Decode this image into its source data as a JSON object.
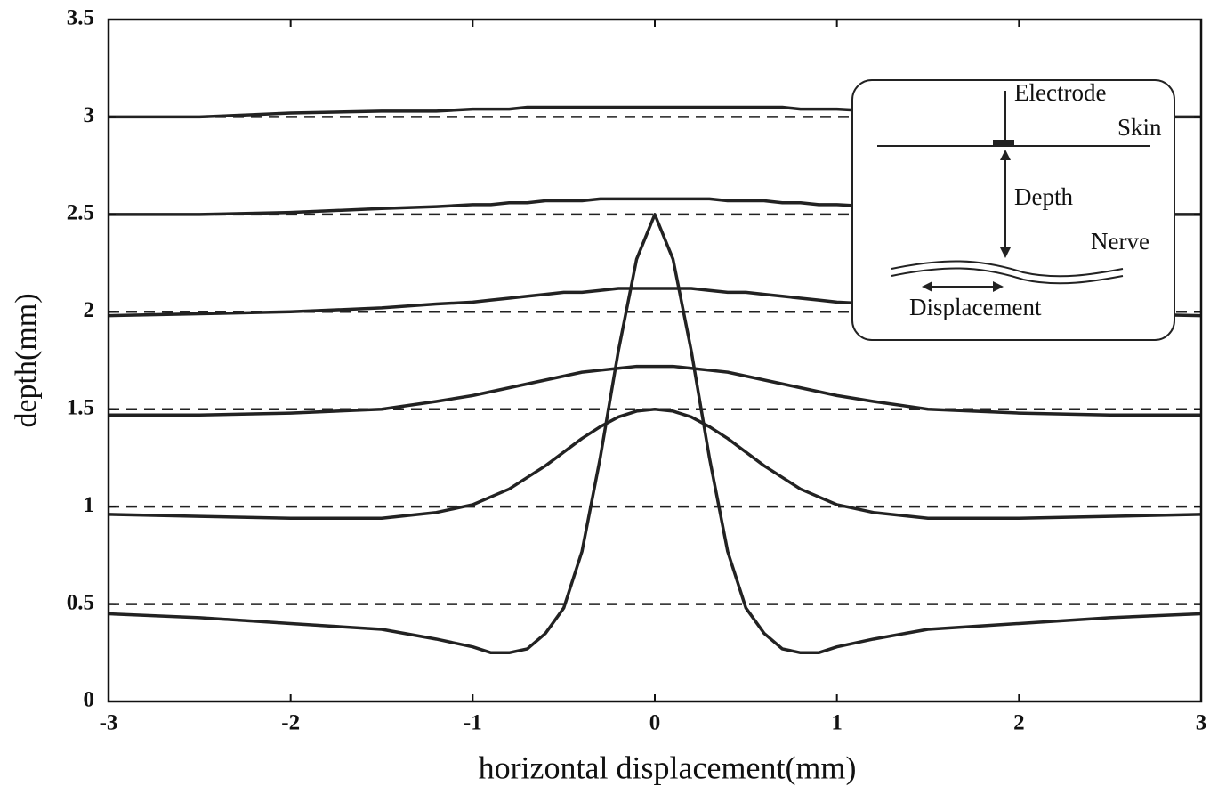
{
  "chart_data": {
    "type": "line",
    "xlabel": "horizontal displacement(mm)",
    "ylabel": "depth(mm)",
    "xlim": [
      -3,
      3
    ],
    "ylim": [
      0,
      3.5
    ],
    "xticks": [
      -3,
      -2,
      -1,
      0,
      1,
      2,
      3
    ],
    "yticks": [
      0,
      0.5,
      1,
      1.5,
      2,
      2.5,
      3,
      3.5
    ],
    "x": [
      -3,
      -2.5,
      -2,
      -1.5,
      -1.2,
      -1,
      -0.9,
      -0.8,
      -0.7,
      -0.6,
      -0.5,
      -0.4,
      -0.3,
      -0.2,
      -0.1,
      0,
      0.1,
      0.2,
      0.3,
      0.4,
      0.5,
      0.6,
      0.7,
      0.8,
      0.9,
      1,
      1.2,
      1.5,
      2,
      2.5,
      3
    ],
    "series": [
      {
        "color": "#222222",
        "values": [
          0.45,
          0.43,
          0.4,
          0.37,
          0.32,
          0.28,
          0.25,
          0.25,
          0.27,
          0.35,
          0.48,
          0.77,
          1.25,
          1.8,
          2.27,
          2.5,
          2.27,
          1.8,
          1.25,
          0.77,
          0.48,
          0.35,
          0.27,
          0.25,
          0.25,
          0.28,
          0.32,
          0.37,
          0.4,
          0.43,
          0.45
        ]
      },
      {
        "color": "#222222",
        "values": [
          0.96,
          0.95,
          0.94,
          0.94,
          0.97,
          1.01,
          1.05,
          1.09,
          1.15,
          1.21,
          1.28,
          1.35,
          1.41,
          1.46,
          1.49,
          1.5,
          1.49,
          1.46,
          1.41,
          1.35,
          1.28,
          1.21,
          1.15,
          1.09,
          1.05,
          1.01,
          0.97,
          0.94,
          0.94,
          0.95,
          0.96
        ]
      },
      {
        "color": "#222222",
        "values": [
          1.47,
          1.47,
          1.48,
          1.5,
          1.54,
          1.57,
          1.59,
          1.61,
          1.63,
          1.65,
          1.67,
          1.69,
          1.7,
          1.71,
          1.72,
          1.72,
          1.72,
          1.71,
          1.7,
          1.69,
          1.67,
          1.65,
          1.63,
          1.61,
          1.59,
          1.57,
          1.54,
          1.5,
          1.48,
          1.47,
          1.47
        ]
      },
      {
        "color": "#222222",
        "values": [
          1.98,
          1.99,
          2.0,
          2.02,
          2.04,
          2.05,
          2.06,
          2.07,
          2.08,
          2.09,
          2.1,
          2.1,
          2.11,
          2.12,
          2.12,
          2.12,
          2.12,
          2.12,
          2.11,
          2.1,
          2.1,
          2.09,
          2.08,
          2.07,
          2.06,
          2.05,
          2.04,
          2.02,
          2.0,
          1.99,
          1.98
        ]
      },
      {
        "color": "#222222",
        "values": [
          2.5,
          2.5,
          2.51,
          2.53,
          2.54,
          2.55,
          2.55,
          2.56,
          2.56,
          2.57,
          2.57,
          2.57,
          2.58,
          2.58,
          2.58,
          2.58,
          2.58,
          2.58,
          2.58,
          2.57,
          2.57,
          2.57,
          2.56,
          2.56,
          2.55,
          2.55,
          2.54,
          2.53,
          2.51,
          2.5,
          2.5
        ]
      },
      {
        "color": "#222222",
        "values": [
          3.0,
          3.0,
          3.02,
          3.03,
          3.03,
          3.04,
          3.04,
          3.04,
          3.05,
          3.05,
          3.05,
          3.05,
          3.05,
          3.05,
          3.05,
          3.05,
          3.05,
          3.05,
          3.05,
          3.05,
          3.05,
          3.05,
          3.05,
          3.04,
          3.04,
          3.04,
          3.03,
          3.03,
          3.02,
          3.0,
          3.0
        ]
      },
      {
        "color": "#222222",
        "dash": true,
        "x": [
          -3,
          3
        ],
        "values": [
          0.5,
          0.5
        ]
      },
      {
        "color": "#222222",
        "dash": true,
        "x": [
          -3,
          3
        ],
        "values": [
          1,
          1
        ]
      },
      {
        "color": "#222222",
        "dash": true,
        "x": [
          -3,
          3
        ],
        "values": [
          1.5,
          1.5
        ]
      },
      {
        "color": "#222222",
        "dash": true,
        "x": [
          -3,
          3
        ],
        "values": [
          2,
          2
        ]
      },
      {
        "color": "#222222",
        "dash": true,
        "x": [
          -3,
          3
        ],
        "values": [
          2.5,
          2.5
        ]
      },
      {
        "color": "#222222",
        "dash": true,
        "x": [
          -3,
          3
        ],
        "values": [
          3,
          3
        ]
      }
    ],
    "annotations": [
      "Electrode",
      "Skin",
      "Depth",
      "Nerve",
      "Displacement"
    ]
  }
}
